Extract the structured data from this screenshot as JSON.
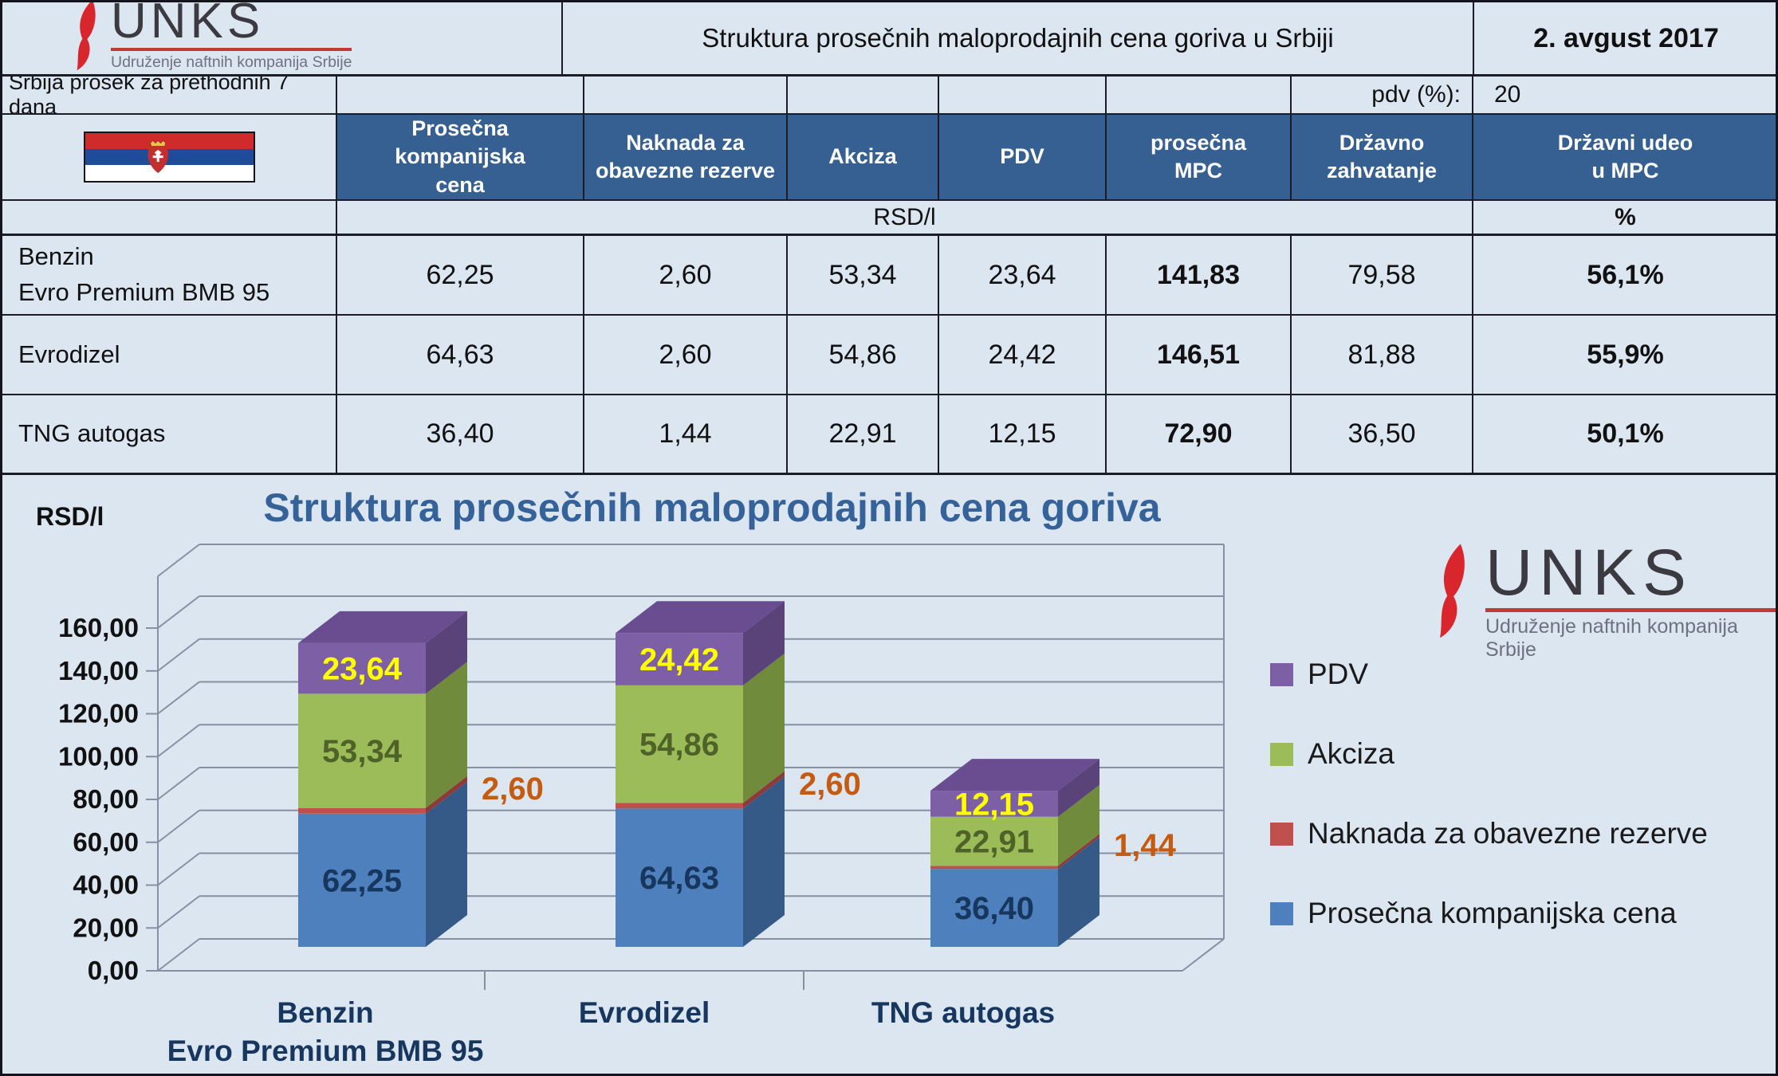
{
  "header": {
    "logo": {
      "name": "UNKS",
      "subtitle": "Udruženje naftnih kompanija Srbije"
    },
    "title": "Struktura prosečnih maloprodajnih cena goriva u Srbiji",
    "date": "2. avgust 2017",
    "note": "Srbija prosek za prethodnih 7 dana",
    "pdv_label": "pdv (%):",
    "pdv_value": "20"
  },
  "table": {
    "columns": [
      "Prosečna kompanijska\ncena",
      "Naknada za\nobavezne rezerve",
      "Akciza",
      "PDV",
      "prosečna\nMPC",
      "Državno\nzahvatanje",
      "Državni udeo\nu MPC"
    ],
    "unit_rsd": "RSD/l",
    "unit_pct": "%",
    "rows": [
      {
        "name": "Benzin\nEvro Premium BMB 95",
        "kompanijska": "62,25",
        "naknada": "2,60",
        "akciza": "53,34",
        "pdv": "23,64",
        "mpc": "141,83",
        "drzavno": "79,58",
        "udeo": "56,1%"
      },
      {
        "name": "Evrodizel",
        "kompanijska": "64,63",
        "naknada": "2,60",
        "akciza": "54,86",
        "pdv": "24,42",
        "mpc": "146,51",
        "drzavno": "81,88",
        "udeo": "55,9%"
      },
      {
        "name": "TNG autogas",
        "kompanijska": "36,40",
        "naknada": "1,44",
        "akciza": "22,91",
        "pdv": "12,15",
        "mpc": "72,90",
        "drzavno": "36,50",
        "udeo": "50,1%"
      }
    ]
  },
  "chart_data": {
    "type": "bar",
    "stacked": true,
    "effect": "3d",
    "title": "Struktura prosečnih maloprodajnih cena goriva",
    "ylabel": "RSD/l",
    "y_axis": {
      "min": 0,
      "max": 160,
      "step": 20,
      "tick_format": "0,00"
    },
    "grid": true,
    "legend_position": "right",
    "categories": [
      {
        "label": "Benzin",
        "sublabel": "Evro Premium BMB 95"
      },
      {
        "label": "Evrodizel",
        "sublabel": ""
      },
      {
        "label": "TNG autogas",
        "sublabel": ""
      }
    ],
    "series": [
      {
        "name": "Prosečna kompanijska cena",
        "color": "#4d80bd",
        "side": "#355a87",
        "label_color": "#17375e",
        "label_pos": "inside",
        "values": [
          62.25,
          64.63,
          36.4
        ],
        "display": [
          "62,25",
          "64,63",
          "36,40"
        ]
      },
      {
        "name": "Naknada za obavezne rezerve",
        "color": "#c0504d",
        "side": "#8e3a38",
        "label_color": "#c55a11",
        "label_pos": "right",
        "values": [
          2.6,
          2.6,
          1.44
        ],
        "display": [
          "2,60",
          "2,60",
          "1,44"
        ]
      },
      {
        "name": "Akciza",
        "color": "#9cbb59",
        "side": "#6f8b3b",
        "label_color": "#4f6228",
        "label_pos": "inside",
        "values": [
          53.34,
          54.86,
          22.91
        ],
        "display": [
          "53,34",
          "54,86",
          "22,91"
        ]
      },
      {
        "name": "PDV",
        "color": "#7d5fa6",
        "side": "#5a4378",
        "top": "#6a4d90",
        "label_color": "#ffff00",
        "label_pos": "inside",
        "values": [
          23.64,
          24.42,
          12.15
        ],
        "display": [
          "23,64",
          "24,42",
          "12,15"
        ]
      }
    ],
    "totals_mpc": [
      141.83,
      146.51,
      72.9
    ]
  }
}
